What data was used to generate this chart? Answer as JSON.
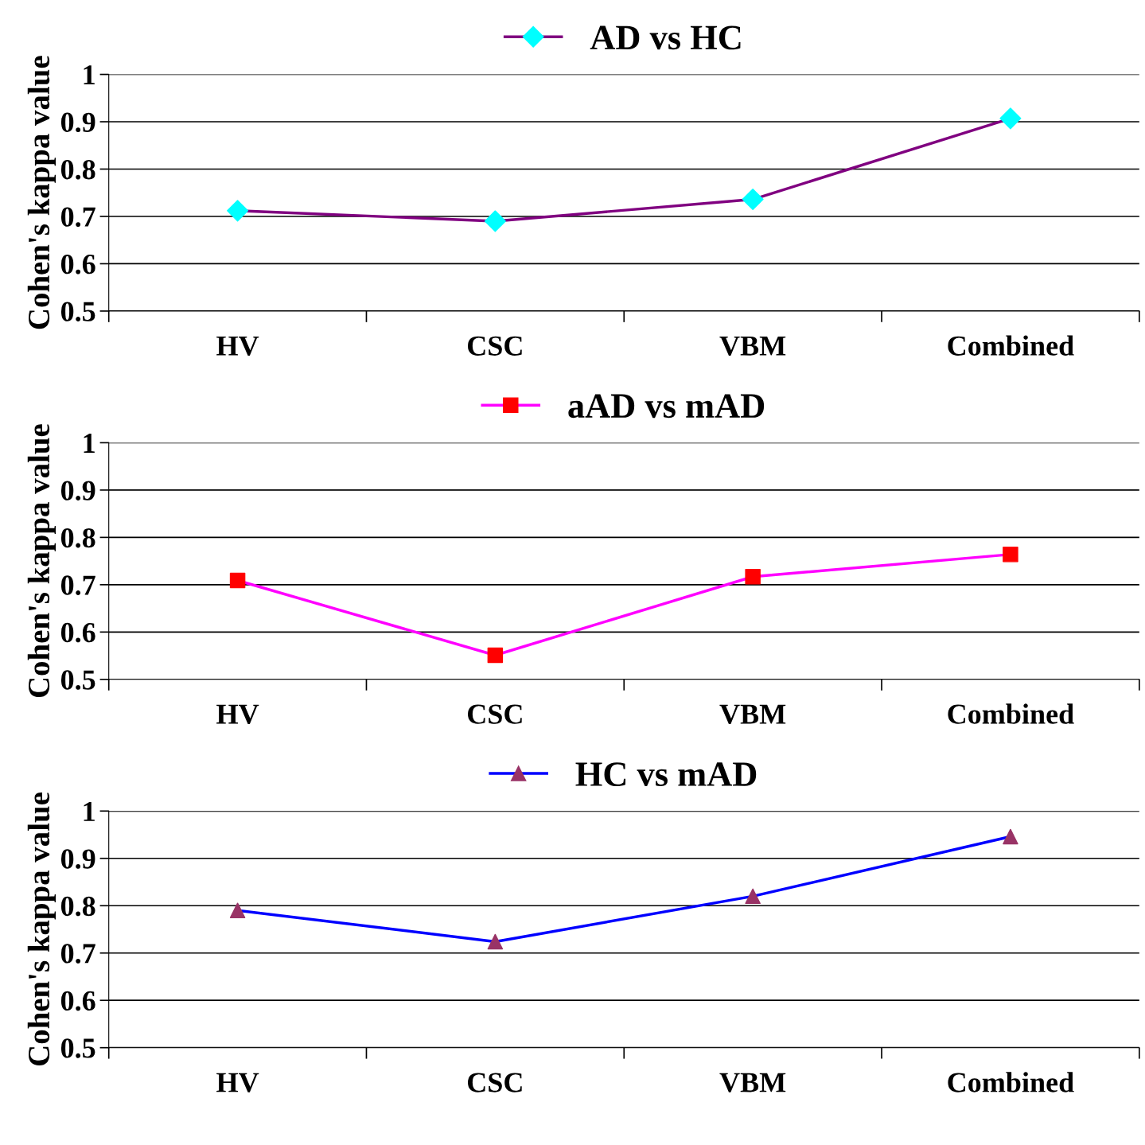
{
  "chart_data": [
    {
      "type": "line",
      "ylabel": "Cohen's kappa value",
      "categories": [
        "HV",
        "CSC",
        "VBM",
        "Combined"
      ],
      "ylim": [
        0.5,
        1
      ],
      "yticks": [
        0.5,
        0.6,
        0.7,
        0.8,
        0.9,
        1
      ],
      "grid": "y",
      "legend": "top",
      "marker": "diamond",
      "series": [
        {
          "name": "AD vs HC",
          "color": "#800080",
          "colors": [
            "#00ffff",
            "#00ffff",
            "#00ffff",
            "#00ffff"
          ],
          "values": [
            0.712,
            0.69,
            0.736,
            0.907
          ]
        }
      ]
    },
    {
      "type": "line",
      "ylabel": "Cohen's kappa value",
      "categories": [
        "HV",
        "CSC",
        "VBM",
        "Combined"
      ],
      "ylim": [
        0.5,
        1
      ],
      "yticks": [
        0.5,
        0.6,
        0.7,
        0.8,
        0.9,
        1
      ],
      "grid": "y",
      "legend": "top",
      "marker": "square",
      "series": [
        {
          "name": "aAD vs mAD",
          "color": "#ff00ff",
          "colors": [
            "#ff0000",
            "#ff0000",
            "#ff0000",
            "#ff0000"
          ],
          "values": [
            0.709,
            0.551,
            0.717,
            0.764
          ]
        }
      ]
    },
    {
      "type": "line",
      "ylabel": "Cohen's kappa value",
      "categories": [
        "HV",
        "CSC",
        "VBM",
        "Combined"
      ],
      "ylim": [
        0.5,
        1
      ],
      "yticks": [
        0.5,
        0.6,
        0.7,
        0.8,
        0.9,
        1
      ],
      "grid": "y",
      "legend": "top",
      "marker": "triangle",
      "series": [
        {
          "name": "HC vs mAD",
          "color": "#0000ff",
          "colors": [
            "#993366",
            "#993366",
            "#993366",
            "#993366"
          ],
          "values": [
            0.79,
            0.724,
            0.82,
            0.946
          ]
        }
      ]
    }
  ]
}
